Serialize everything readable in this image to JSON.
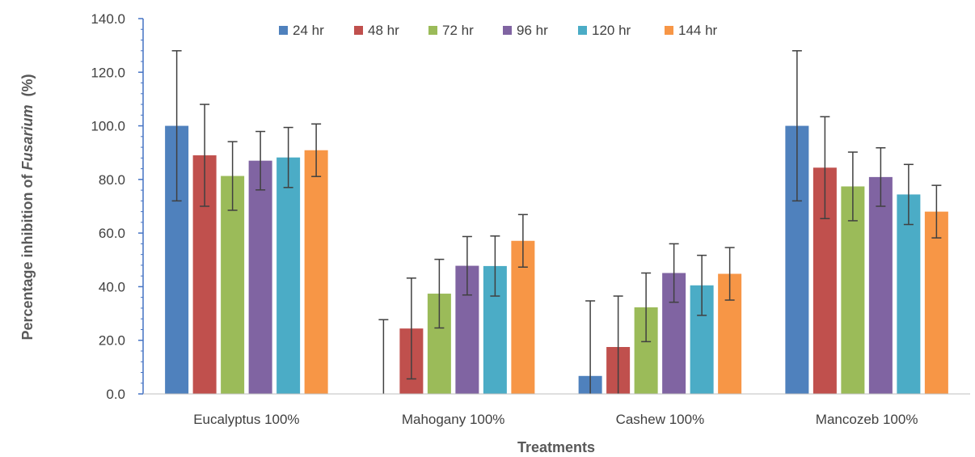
{
  "chart_data": {
    "type": "bar",
    "title": "",
    "xlabel": "Treatments",
    "ylabel_prefix": "Percentage inhibition of ",
    "ylabel_italic": "Fusarium",
    "ylabel_suffix": "  (%)",
    "ylim": [
      0,
      140
    ],
    "yticks": [
      "0.0",
      "20.0",
      "40.0",
      "60.0",
      "80.0",
      "100.0",
      "120.0",
      "140.0"
    ],
    "grid": false,
    "legend_position": "top",
    "categories": [
      "Eucalyptus 100%",
      "Mahogany 100%",
      "Cashew 100%",
      "Mancozeb 100%"
    ],
    "series": [
      {
        "name": "24 hr",
        "color": "#4F81BD",
        "values": [
          100.0,
          0.0,
          6.7,
          100.0
        ],
        "errors": [
          28.0,
          27.7,
          28.0,
          28.0
        ]
      },
      {
        "name": "48 hr",
        "color": "#C0504D",
        "values": [
          89.0,
          24.4,
          17.5,
          84.4
        ],
        "errors": [
          19.0,
          18.8,
          19.0,
          19.0
        ]
      },
      {
        "name": "72 hr",
        "color": "#9BBB59",
        "values": [
          81.3,
          37.4,
          32.3,
          77.4
        ],
        "errors": [
          12.8,
          12.8,
          12.8,
          12.8
        ]
      },
      {
        "name": "96 hr",
        "color": "#8064A2",
        "values": [
          87.0,
          47.8,
          45.1,
          80.9
        ],
        "errors": [
          10.9,
          10.9,
          10.9,
          10.9
        ]
      },
      {
        "name": "120 hr",
        "color": "#4BACC6",
        "values": [
          88.2,
          47.7,
          40.5,
          74.4
        ],
        "errors": [
          11.2,
          11.2,
          11.2,
          11.2
        ]
      },
      {
        "name": "144 hr",
        "color": "#F79646",
        "values": [
          90.9,
          57.1,
          44.8,
          68.0
        ],
        "errors": [
          9.8,
          9.8,
          9.8,
          9.8
        ]
      }
    ]
  }
}
